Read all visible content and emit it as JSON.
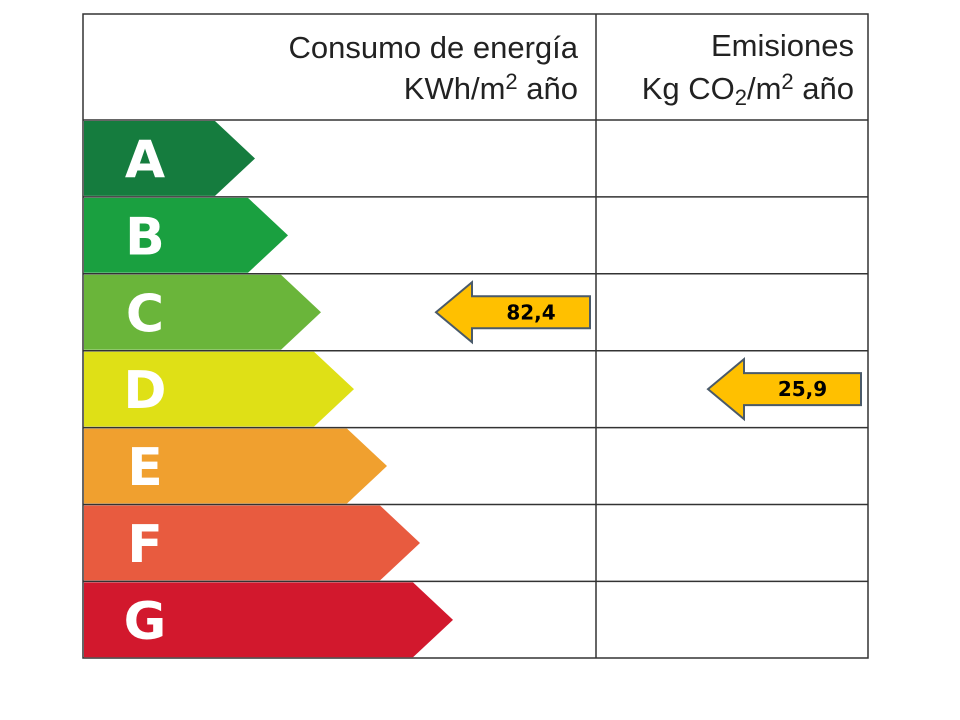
{
  "header": {
    "consumption": {
      "title": "Consumo de energía",
      "unit": [
        "KWh/m",
        "2",
        " año"
      ]
    },
    "emissions": {
      "title": "Emisiones",
      "unit": [
        "Kg CO",
        "2",
        "/m",
        "2",
        " año"
      ]
    }
  },
  "grades": [
    {
      "letter": "A",
      "color": "#157c3e"
    },
    {
      "letter": "B",
      "color": "#1aa040"
    },
    {
      "letter": "C",
      "color": "#6ab53a"
    },
    {
      "letter": "D",
      "color": "#dfe016"
    },
    {
      "letter": "E",
      "color": "#f0a02f"
    },
    {
      "letter": "F",
      "color": "#e85b3f"
    },
    {
      "letter": "G",
      "color": "#d2182d"
    }
  ],
  "consumption": {
    "label": "82,4",
    "grade": "C"
  },
  "emissions": {
    "label": "25,9",
    "grade": "D"
  }
}
